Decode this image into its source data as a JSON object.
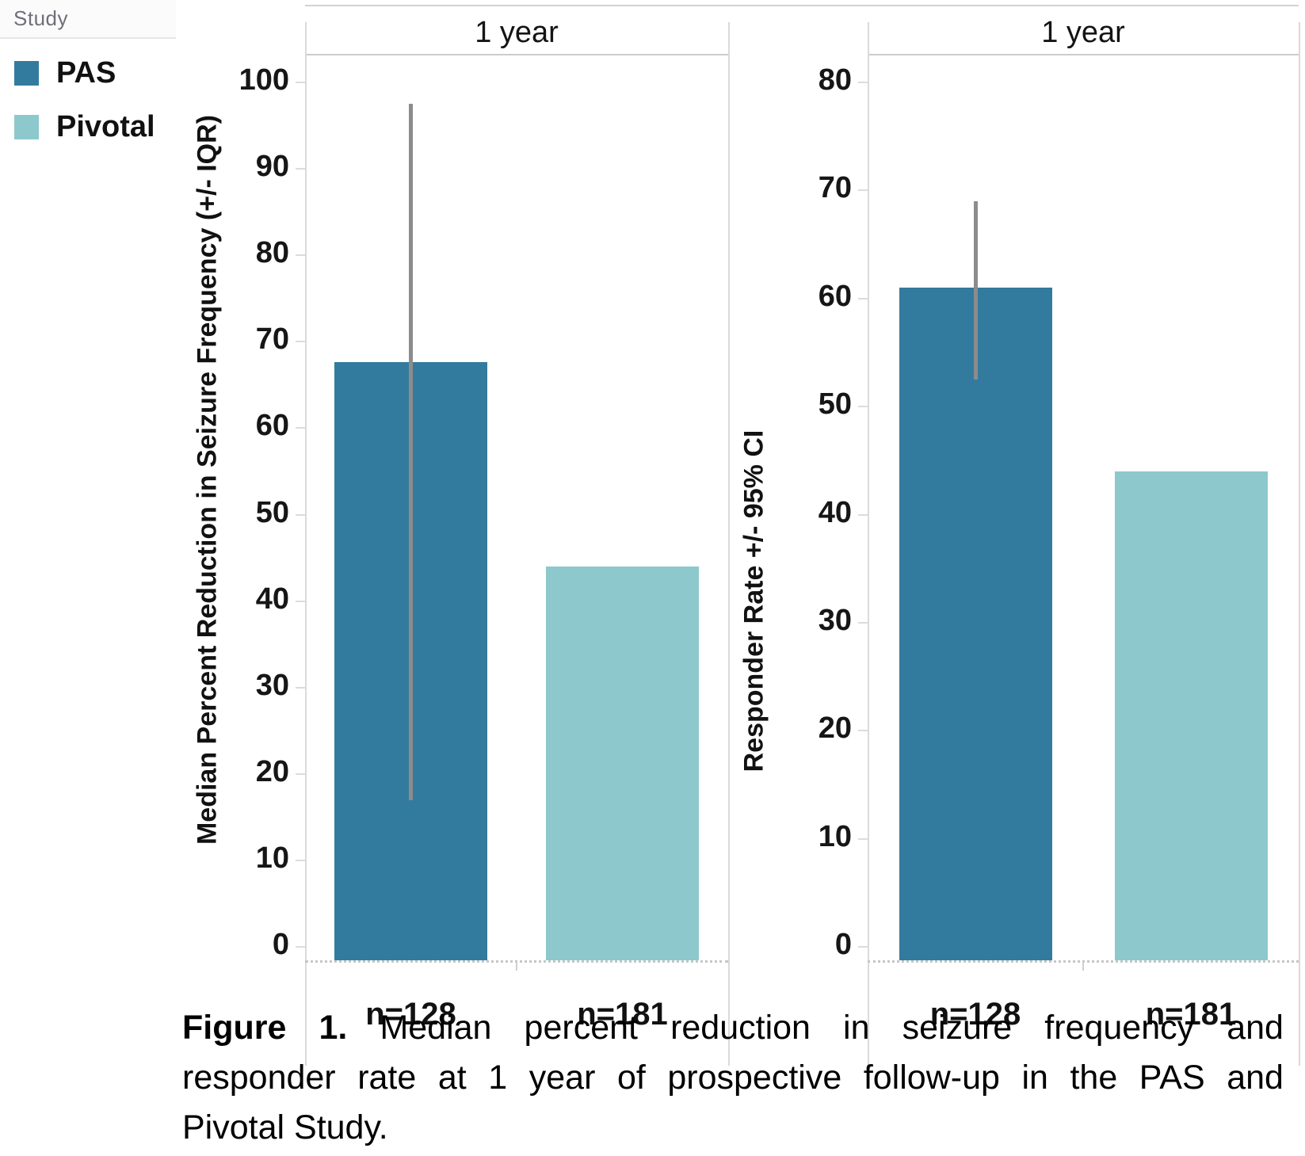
{
  "legend": {
    "title": "Study",
    "items": [
      {
        "label": "PAS",
        "color": "#337b9e"
      },
      {
        "label": "Pivotal",
        "color": "#8dc8cd"
      }
    ]
  },
  "colors": {
    "pas_bar": "#337b9e",
    "pivotal_bar": "#8dc8cd",
    "error_bar": "#8c8c8c"
  },
  "chart_data": [
    {
      "type": "bar",
      "title": "1 year",
      "ylabel": "Median Percent Reduction in Seizure Frequency (+/- IQR)",
      "xlabel": "",
      "ylim": [
        0,
        100
      ],
      "ytick_step": 10,
      "grid": false,
      "error_bar_type": "IQR",
      "categories": [
        "n=128",
        "n=181"
      ],
      "series": [
        {
          "name": "PAS",
          "category": "n=128",
          "value": 67.6,
          "error_low": 17,
          "error_high": 97.5
        },
        {
          "name": "Pivotal",
          "category": "n=181",
          "value": 44,
          "error_low": null,
          "error_high": null
        }
      ]
    },
    {
      "type": "bar",
      "title": "1 year",
      "ylabel": "Responder Rate +/- 95% CI",
      "xlabel": "",
      "ylim": [
        0,
        80
      ],
      "ytick_step": 10,
      "grid": false,
      "error_bar_type": "95% CI",
      "categories": [
        "n=128",
        "n=181"
      ],
      "series": [
        {
          "name": "PAS",
          "category": "n=128",
          "value": 61,
          "error_low": 52.5,
          "error_high": 69
        },
        {
          "name": "Pivotal",
          "category": "n=181",
          "value": 44,
          "error_low": null,
          "error_high": null
        }
      ]
    }
  ],
  "caption": {
    "bold_words": 2,
    "lines": [
      "Figure 1. Median percent reduction in seizure frequency and",
      "responder rate at 1 year of prospective follow-up in the PAS and",
      "Pivotal Study."
    ]
  }
}
